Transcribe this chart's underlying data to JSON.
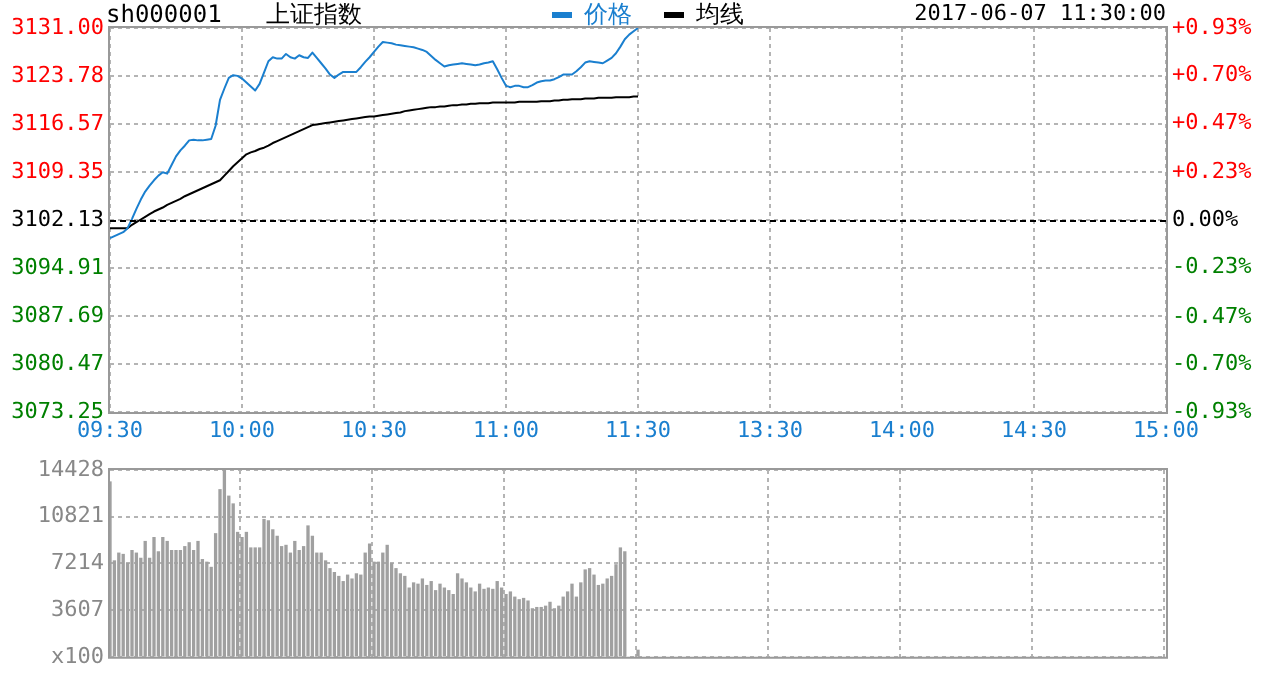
{
  "chart_data": [
    {
      "type": "line",
      "title": "上证指数",
      "subtitle": "sh000001",
      "annotations": [
        "2017-06-07 11:30:00"
      ],
      "legend": "top",
      "grid": true,
      "categories": [
        "09:30",
        null,
        null,
        null,
        null,
        null,
        null,
        null,
        null,
        null,
        null,
        null,
        null,
        null,
        null,
        null,
        null,
        null,
        null,
        null,
        null,
        null,
        null,
        null,
        null,
        null,
        null,
        null,
        null,
        null,
        "10:00",
        null,
        null,
        null,
        null,
        null,
        null,
        null,
        null,
        null,
        null,
        null,
        null,
        null,
        null,
        null,
        null,
        null,
        null,
        null,
        null,
        null,
        null,
        null,
        null,
        null,
        null,
        null,
        null,
        null,
        "10:30",
        null,
        null,
        null,
        null,
        null,
        null,
        null,
        null,
        null,
        null,
        null,
        null,
        null,
        null,
        null,
        null,
        null,
        null,
        null,
        null,
        null,
        null,
        null,
        null,
        null,
        null,
        null,
        null,
        null,
        "11:00",
        null,
        null,
        null,
        null,
        null,
        null,
        null,
        null,
        null,
        null,
        null,
        null,
        null,
        null,
        null,
        null,
        null,
        null,
        null,
        null,
        null,
        null,
        null,
        null,
        null,
        null,
        null,
        null,
        null,
        "11:30",
        null,
        null,
        null,
        null,
        null,
        null,
        null,
        null,
        null,
        null,
        null,
        null,
        null,
        null,
        null,
        null,
        null,
        null,
        null,
        null,
        null,
        null,
        null,
        null,
        null,
        null,
        null,
        null,
        null,
        "13:30",
        null,
        null,
        null,
        null,
        null,
        null,
        null,
        null,
        null,
        null,
        null,
        null,
        null,
        null,
        null,
        null,
        null,
        null,
        null,
        null,
        null,
        null,
        null,
        null,
        null,
        null,
        null,
        null,
        null,
        "14:00",
        null,
        null,
        null,
        null,
        null,
        null,
        null,
        null,
        null,
        null,
        null,
        null,
        null,
        null,
        null,
        null,
        null,
        null,
        null,
        null,
        null,
        null,
        null,
        null,
        null,
        null,
        null,
        null,
        null,
        "14:30",
        null,
        null,
        null,
        null,
        null,
        null,
        null,
        null,
        null,
        null,
        null,
        null,
        null,
        null,
        null,
        null,
        null,
        null,
        null,
        null,
        null,
        null,
        null,
        null,
        null,
        null,
        null,
        null,
        null,
        "15:00"
      ],
      "ylim": [
        3073.25,
        3131.0
      ],
      "yticks": [
        3073.25,
        {
          "value": 3080.47,
          "label": "3080.47"
        },
        {
          "value": 3087.69,
          "label": "3087.69"
        },
        {
          "value": 3094.91,
          "label": "3094.91"
        },
        {
          "value": 3102.13,
          "label": "3102.13"
        },
        {
          "value": 3109.35,
          "label": "3109.35"
        },
        {
          "value": 3116.57,
          "label": "3116.57"
        },
        {
          "value": 3123.78,
          "label": "3123.78"
        },
        {
          "value": 3131.0,
          "label": "3131.00"
        }
      ],
      "y2lim": [
        -0.93,
        0.93
      ],
      "y2ticks": [
        {
          "value": -0.93,
          "label": "-0.93%"
        },
        {
          "value": -0.7,
          "label": "-0.70%"
        },
        {
          "value": -0.47,
          "label": "-0.47%"
        },
        {
          "value": -0.23,
          "label": "-0.23%"
        },
        {
          "value": 0,
          "label": "0.00%"
        },
        {
          "value": 0.23,
          "label": "+0.23%"
        },
        {
          "value": 0.47,
          "label": "+0.47%"
        },
        {
          "value": 0.7,
          "label": "+0.70%"
        },
        {
          "value": 0.93,
          "label": "+0.93%"
        }
      ],
      "ref_lines": [
        {
          "axis": "y",
          "value": 3102.13,
          "color": "#000000",
          "line_style": "dashed"
        }
      ],
      "series": [
        {
          "name": "价格",
          "color": "#1a7fcf",
          "values": [
            3099.4,
            3099.7,
            3100.0,
            3100.3,
            3100.9,
            3102.3,
            3103.8,
            3105.2,
            3106.4,
            3107.3,
            3108.1,
            3108.8,
            3109.3,
            3109.1,
            3110.4,
            3111.7,
            3112.6,
            3113.3,
            3114.1,
            3114.2,
            3114.1,
            3114.1,
            3114.2,
            3114.3,
            3116.3,
            3120.2,
            3121.9,
            3123.5,
            3123.9,
            3123.8,
            3123.4,
            3122.8,
            3122.2,
            3121.6,
            3122.6,
            3124.3,
            3126.0,
            3126.6,
            3126.4,
            3126.4,
            3127.1,
            3126.6,
            3126.4,
            3126.9,
            3126.6,
            3126.5,
            3127.3,
            3126.5,
            3125.7,
            3124.9,
            3124.0,
            3123.5,
            3124.0,
            3124.4,
            3124.4,
            3124.4,
            3124.4,
            3125.1,
            3125.9,
            3126.6,
            3127.4,
            3128.2,
            3128.9,
            3128.8,
            3128.7,
            3128.5,
            3128.4,
            3128.3,
            3128.2,
            3128.1,
            3127.9,
            3127.7,
            3127.4,
            3126.8,
            3126.2,
            3125.7,
            3125.2,
            3125.4,
            3125.5,
            3125.6,
            3125.7,
            3125.6,
            3125.5,
            3125.4,
            3125.5,
            3125.7,
            3125.8,
            3126.0,
            3124.8,
            3123.5,
            3122.3,
            3122.1,
            3122.3,
            3122.3,
            3122.1,
            3122.1,
            3122.4,
            3122.8,
            3123.0,
            3123.1,
            3123.1,
            3123.3,
            3123.6,
            3124.0,
            3124.0,
            3124.0,
            3124.5,
            3125.1,
            3125.8,
            3126.0,
            3125.9,
            3125.8,
            3125.7,
            3126.1,
            3126.5,
            3127.2,
            3128.2,
            3129.3,
            3130.0,
            3130.5,
            3131.0,
            null,
            null,
            null,
            null,
            null,
            null,
            null,
            null,
            null,
            null,
            null,
            null,
            null,
            null,
            null,
            null,
            null,
            null,
            null,
            null,
            null,
            null,
            null,
            null,
            null,
            null,
            null,
            null,
            null,
            null,
            null,
            null,
            null,
            null,
            null,
            null,
            null,
            null,
            null,
            null,
            null,
            null,
            null,
            null,
            null,
            null,
            null,
            null,
            null,
            null,
            null,
            null,
            null,
            null,
            null,
            null,
            null,
            null,
            null,
            null,
            null,
            null,
            null,
            null,
            null,
            null,
            null,
            null,
            null,
            null,
            null,
            null,
            null,
            null,
            null,
            null,
            null,
            null,
            null,
            null,
            null,
            null,
            null,
            null,
            null,
            null,
            null,
            null,
            null,
            null,
            null,
            null,
            null,
            null,
            null,
            null,
            null,
            null,
            null,
            null,
            null,
            null,
            null,
            null,
            null,
            null,
            null,
            null,
            null,
            null,
            null,
            null,
            null,
            null,
            null,
            null,
            null,
            null,
            null,
            null
          ]
        },
        {
          "name": "均线",
          "color": "#000000",
          "values": [
            3100.9,
            3100.9,
            3100.9,
            3100.9,
            3100.9,
            3101.4,
            3101.8,
            3102.2,
            3102.6,
            3103.0,
            3103.4,
            3103.7,
            3104.0,
            3104.4,
            3104.7,
            3105.0,
            3105.3,
            3105.7,
            3106.0,
            3106.3,
            3106.6,
            3106.9,
            3107.2,
            3107.5,
            3107.8,
            3108.1,
            3108.8,
            3109.5,
            3110.2,
            3110.8,
            3111.4,
            3112.0,
            3112.3,
            3112.5,
            3112.8,
            3113.0,
            3113.3,
            3113.7,
            3114.0,
            3114.3,
            3114.6,
            3114.9,
            3115.2,
            3115.5,
            3115.8,
            3116.1,
            3116.4,
            3116.5,
            3116.6,
            3116.7,
            3116.8,
            3116.9,
            3117.0,
            3117.1,
            3117.2,
            3117.3,
            3117.4,
            3117.5,
            3117.6,
            3117.7,
            3117.7,
            3117.8,
            3117.9,
            3118.0,
            3118.1,
            3118.2,
            3118.3,
            3118.5,
            3118.6,
            3118.7,
            3118.8,
            3118.9,
            3119.0,
            3119.1,
            3119.1,
            3119.2,
            3119.2,
            3119.3,
            3119.4,
            3119.4,
            3119.5,
            3119.5,
            3119.6,
            3119.6,
            3119.7,
            3119.7,
            3119.7,
            3119.8,
            3119.8,
            3119.8,
            3119.8,
            3119.8,
            3119.8,
            3119.9,
            3119.9,
            3119.9,
            3119.9,
            3119.9,
            3120.0,
            3120.0,
            3120.0,
            3120.1,
            3120.1,
            3120.2,
            3120.2,
            3120.3,
            3120.3,
            3120.3,
            3120.4,
            3120.4,
            3120.4,
            3120.5,
            3120.5,
            3120.5,
            3120.5,
            3120.6,
            3120.6,
            3120.6,
            3120.6,
            3120.7,
            3120.7,
            null,
            null,
            null,
            null,
            null,
            null,
            null,
            null,
            null,
            null,
            null,
            null,
            null,
            null,
            null,
            null,
            null,
            null,
            null,
            null,
            null,
            null,
            null,
            null,
            null,
            null,
            null,
            null,
            null,
            null,
            null,
            null,
            null,
            null,
            null,
            null,
            null,
            null,
            null,
            null,
            null,
            null,
            null,
            null,
            null,
            null,
            null,
            null,
            null,
            null,
            null,
            null,
            null,
            null,
            null,
            null,
            null,
            null,
            null,
            null,
            null,
            null,
            null,
            null,
            null,
            null,
            null,
            null,
            null,
            null,
            null,
            null,
            null,
            null,
            null,
            null,
            null,
            null,
            null,
            null,
            null,
            null,
            null,
            null,
            null,
            null,
            null,
            null,
            null,
            null,
            null,
            null,
            null,
            null,
            null,
            null,
            null,
            null,
            null,
            null,
            null,
            null,
            null,
            null,
            null,
            null,
            null,
            null,
            null,
            null,
            null,
            null,
            null,
            null,
            null,
            null,
            null,
            null,
            null,
            null
          ]
        }
      ]
    },
    {
      "type": "bar",
      "grid": true,
      "tick_labels": "y",
      "categories": [
        null,
        null,
        null,
        null,
        null,
        null,
        null,
        null,
        null,
        null,
        null,
        null,
        null,
        null,
        null,
        null,
        null,
        null,
        null,
        null,
        null,
        null,
        null,
        null,
        null,
        null,
        null,
        null,
        null,
        null,
        null,
        null,
        null,
        null,
        null,
        null,
        null,
        null,
        null,
        null,
        null,
        null,
        null,
        null,
        null,
        null,
        null,
        null,
        null,
        null,
        null,
        null,
        null,
        null,
        null,
        null,
        null,
        null,
        null,
        null,
        null,
        null,
        null,
        null,
        null,
        null,
        null,
        null,
        null,
        null,
        null,
        null,
        null,
        null,
        null,
        null,
        null,
        null,
        null,
        null,
        null,
        null,
        null,
        null,
        null,
        null,
        null,
        null,
        null,
        null,
        null,
        null,
        null,
        null,
        null,
        null,
        null,
        null,
        null,
        null,
        null,
        null,
        null,
        null,
        null,
        null,
        null,
        null,
        null,
        null,
        null,
        null,
        null,
        null,
        null,
        null,
        null,
        null,
        null,
        null,
        null,
        null,
        null,
        null,
        null,
        null,
        null,
        null,
        null,
        null,
        null,
        null,
        null,
        null,
        null,
        null,
        null,
        null,
        null,
        null,
        null,
        null,
        null,
        null,
        null,
        null,
        null,
        null,
        null,
        null,
        null,
        null,
        null,
        null,
        null,
        null,
        null,
        null,
        null,
        null,
        null,
        null,
        null,
        null,
        null,
        null,
        null,
        null,
        null,
        null,
        null,
        null,
        null,
        null,
        null,
        null,
        null,
        null,
        null,
        null,
        null,
        null,
        null,
        null,
        null,
        null,
        null,
        null,
        null,
        null,
        null,
        null,
        null,
        null,
        null,
        null,
        null,
        null,
        null,
        null,
        null,
        null,
        null,
        null,
        null,
        null,
        null,
        null,
        null,
        null,
        null,
        null,
        null,
        null,
        null,
        null,
        null,
        null,
        null,
        null,
        null,
        null,
        null,
        null,
        null,
        null,
        null,
        null,
        null,
        null,
        null,
        null,
        null,
        null,
        null,
        null,
        null,
        null,
        null,
        null,
        null
      ],
      "ylim": [
        0,
        14428
      ],
      "yticks": [
        {
          "value": 0,
          "label": "x100"
        },
        3607,
        7214,
        10821,
        14428
      ],
      "series": [
        {
          "color": "#a0a0a0",
          "values": [
            13500,
            7400,
            8000,
            7900,
            7200,
            8200,
            8000,
            7600,
            8900,
            7600,
            9200,
            8100,
            9200,
            8900,
            8200,
            8200,
            8200,
            8500,
            8800,
            8200,
            8900,
            7500,
            7300,
            6900,
            9500,
            12900,
            14400,
            12400,
            11800,
            9600,
            9200,
            9600,
            8400,
            8400,
            8400,
            10600,
            10500,
            9800,
            9300,
            8500,
            8600,
            8000,
            8900,
            8200,
            8500,
            10100,
            9300,
            8000,
            8000,
            7400,
            6800,
            6500,
            6200,
            5800,
            6300,
            6000,
            6400,
            6300,
            8000,
            8700,
            7300,
            7300,
            8000,
            8600,
            7200,
            6800,
            6400,
            6200,
            5300,
            5700,
            5600,
            6000,
            5500,
            5800,
            5100,
            5600,
            5300,
            5100,
            4800,
            6400,
            6000,
            5700,
            5300,
            5000,
            5600,
            5200,
            5300,
            5200,
            5800,
            5300,
            4800,
            5000,
            4600,
            4400,
            4500,
            4300,
            3700,
            3800,
            3800,
            3900,
            4200,
            3700,
            3900,
            4600,
            5000,
            5600,
            4600,
            5700,
            6700,
            6800,
            6300,
            5500,
            5600,
            6000,
            6200,
            7100,
            8400,
            8100,
            null,
            null,
            500,
            null,
            null,
            null,
            null,
            null,
            null,
            null,
            null,
            null,
            null,
            null,
            null,
            null,
            null,
            null,
            null,
            null,
            null,
            null,
            null,
            null,
            null,
            null,
            null,
            null,
            null,
            null,
            null,
            null,
            null,
            null,
            null,
            null,
            null,
            null,
            null,
            null,
            null,
            null,
            null,
            null,
            null,
            null,
            null,
            null,
            null,
            null,
            null,
            null,
            null,
            null,
            null,
            null,
            null,
            null,
            null,
            null,
            null,
            null,
            null,
            null,
            null,
            null,
            null,
            null,
            null,
            null,
            null,
            null,
            null,
            null,
            null,
            null,
            null,
            null,
            null,
            null,
            null,
            null,
            null,
            null,
            null,
            null,
            null,
            null,
            null,
            null,
            null,
            null,
            null,
            null,
            null,
            null,
            null,
            null,
            null,
            null,
            null,
            null,
            null,
            null,
            null,
            null,
            null,
            null,
            null,
            null,
            null,
            null,
            null,
            null,
            null,
            null,
            null,
            null,
            null,
            null,
            null,
            null,
            null
          ]
        }
      ]
    }
  ]
}
